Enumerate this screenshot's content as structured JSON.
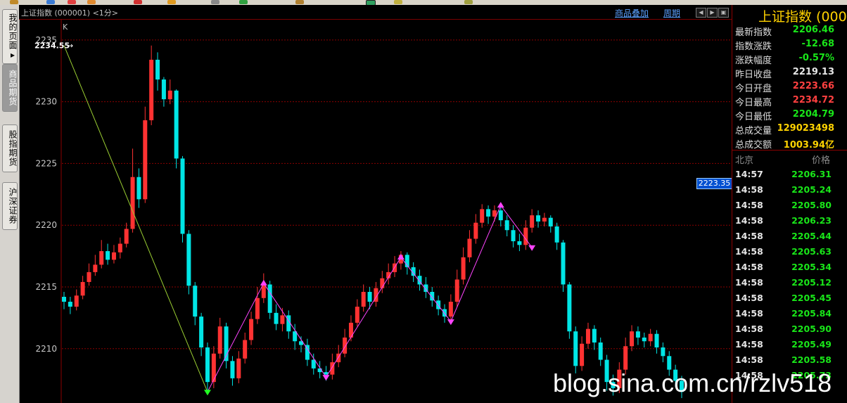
{
  "window": {
    "title": "上证指数 (000001) <1分>",
    "overlay_link": "商品叠加",
    "period_link": "周期"
  },
  "sidebar": {
    "tabs": [
      {
        "label": "我的页面▸",
        "active": false
      },
      {
        "label": "商品期货",
        "active": true
      },
      {
        "label": "股指期货",
        "active": false
      },
      {
        "label": "沪深证券",
        "active": false
      }
    ]
  },
  "chart_data": {
    "type": "candlestick",
    "chart_label": "K",
    "y_ticks": [
      "2235",
      "2230",
      "2225",
      "2220",
      "2215",
      "2210"
    ],
    "ylim": [
      2205.6,
      2236.7
    ],
    "grid": true,
    "peak_label": "2234.55",
    "price_tag": "2223.35",
    "colors": {
      "up": "#ff3232",
      "down": "#00e5e5",
      "wave_main": "#9acd32",
      "wave": "#ff44ff"
    },
    "wave_points": [
      {
        "i": 0,
        "v": 2234.55
      },
      {
        "i": 23,
        "v": 2206.5
      },
      {
        "i": 32,
        "v": 2215.3
      },
      {
        "i": 42,
        "v": 2207.7
      },
      {
        "i": 54,
        "v": 2217.4
      },
      {
        "i": 62,
        "v": 2212.2
      },
      {
        "i": 70,
        "v": 2221.6
      },
      {
        "i": 75,
        "v": 2218.2
      }
    ],
    "bars": [
      {
        "o": 2214.2,
        "c": 2213.8,
        "h": 2214.6,
        "l": 2213.2
      },
      {
        "o": 2213.8,
        "c": 2213.4,
        "h": 2214.2,
        "l": 2212.8
      },
      {
        "o": 2213.4,
        "c": 2214.3,
        "h": 2214.8,
        "l": 2213.1
      },
      {
        "o": 2214.3,
        "c": 2215.4,
        "h": 2215.9,
        "l": 2214.0
      },
      {
        "o": 2215.4,
        "c": 2216.2,
        "h": 2216.9,
        "l": 2215.1
      },
      {
        "o": 2216.2,
        "c": 2216.8,
        "h": 2217.6,
        "l": 2215.9
      },
      {
        "o": 2216.8,
        "c": 2217.9,
        "h": 2218.8,
        "l": 2216.5
      },
      {
        "o": 2217.9,
        "c": 2217.2,
        "h": 2218.5,
        "l": 2216.8
      },
      {
        "o": 2217.2,
        "c": 2217.8,
        "h": 2218.4,
        "l": 2216.9
      },
      {
        "o": 2217.8,
        "c": 2218.5,
        "h": 2219.0,
        "l": 2217.3
      },
      {
        "o": 2218.5,
        "c": 2219.7,
        "h": 2220.2,
        "l": 2218.2
      },
      {
        "o": 2219.7,
        "c": 2223.9,
        "h": 2226.2,
        "l": 2219.4
      },
      {
        "o": 2223.9,
        "c": 2222.1,
        "h": 2224.6,
        "l": 2221.4
      },
      {
        "o": 2222.1,
        "c": 2228.5,
        "h": 2229.6,
        "l": 2221.8
      },
      {
        "o": 2228.5,
        "c": 2233.4,
        "h": 2234.55,
        "l": 2228.1
      },
      {
        "o": 2233.4,
        "c": 2231.8,
        "h": 2234.0,
        "l": 2230.9
      },
      {
        "o": 2231.8,
        "c": 2230.2,
        "h": 2232.0,
        "l": 2229.6
      },
      {
        "o": 2230.2,
        "c": 2230.9,
        "h": 2231.8,
        "l": 2229.8
      },
      {
        "o": 2230.9,
        "c": 2225.4,
        "h": 2231.0,
        "l": 2224.6
      },
      {
        "o": 2225.4,
        "c": 2219.3,
        "h": 2225.6,
        "l": 2218.6
      },
      {
        "o": 2219.3,
        "c": 2215.1,
        "h": 2219.6,
        "l": 2214.4
      },
      {
        "o": 2215.1,
        "c": 2212.6,
        "h": 2215.4,
        "l": 2211.9
      },
      {
        "o": 2212.6,
        "c": 2210.1,
        "h": 2212.9,
        "l": 2209.4
      },
      {
        "o": 2210.1,
        "c": 2207.3,
        "h": 2210.5,
        "l": 2206.5
      },
      {
        "o": 2207.3,
        "c": 2209.6,
        "h": 2210.2,
        "l": 2206.8
      },
      {
        "o": 2209.6,
        "c": 2211.8,
        "h": 2212.5,
        "l": 2209.2
      },
      {
        "o": 2211.8,
        "c": 2209.0,
        "h": 2212.1,
        "l": 2208.4
      },
      {
        "o": 2209.0,
        "c": 2207.6,
        "h": 2209.4,
        "l": 2207.0
      },
      {
        "o": 2207.6,
        "c": 2209.2,
        "h": 2209.8,
        "l": 2207.2
      },
      {
        "o": 2209.2,
        "c": 2210.7,
        "h": 2211.3,
        "l": 2208.8
      },
      {
        "o": 2210.7,
        "c": 2212.4,
        "h": 2213.0,
        "l": 2210.3
      },
      {
        "o": 2212.4,
        "c": 2214.1,
        "h": 2215.0,
        "l": 2212.0
      },
      {
        "o": 2214.1,
        "c": 2215.2,
        "h": 2216.1,
        "l": 2213.7
      },
      {
        "o": 2215.2,
        "c": 2212.9,
        "h": 2215.5,
        "l": 2212.4
      },
      {
        "o": 2212.9,
        "c": 2212.0,
        "h": 2213.6,
        "l": 2211.5
      },
      {
        "o": 2212.0,
        "c": 2212.7,
        "h": 2213.3,
        "l": 2211.4
      },
      {
        "o": 2212.7,
        "c": 2211.4,
        "h": 2213.1,
        "l": 2210.8
      },
      {
        "o": 2211.4,
        "c": 2210.6,
        "h": 2212.0,
        "l": 2209.9
      },
      {
        "o": 2210.6,
        "c": 2210.3,
        "h": 2211.0,
        "l": 2209.7
      },
      {
        "o": 2210.3,
        "c": 2209.1,
        "h": 2210.8,
        "l": 2208.6
      },
      {
        "o": 2209.1,
        "c": 2208.4,
        "h": 2209.6,
        "l": 2207.9
      },
      {
        "o": 2208.4,
        "c": 2208.1,
        "h": 2209.0,
        "l": 2207.6
      },
      {
        "o": 2208.1,
        "c": 2207.9,
        "h": 2208.6,
        "l": 2207.4
      },
      {
        "o": 2207.9,
        "c": 2208.9,
        "h": 2209.6,
        "l": 2207.5
      },
      {
        "o": 2208.9,
        "c": 2209.6,
        "h": 2210.3,
        "l": 2208.5
      },
      {
        "o": 2209.6,
        "c": 2210.9,
        "h": 2211.6,
        "l": 2209.3
      },
      {
        "o": 2210.9,
        "c": 2212.1,
        "h": 2212.7,
        "l": 2210.6
      },
      {
        "o": 2212.1,
        "c": 2213.4,
        "h": 2214.0,
        "l": 2211.8
      },
      {
        "o": 2213.4,
        "c": 2214.6,
        "h": 2215.2,
        "l": 2213.0
      },
      {
        "o": 2214.6,
        "c": 2213.8,
        "h": 2215.0,
        "l": 2213.2
      },
      {
        "o": 2213.8,
        "c": 2214.9,
        "h": 2215.4,
        "l": 2213.4
      },
      {
        "o": 2214.9,
        "c": 2215.7,
        "h": 2216.3,
        "l": 2214.5
      },
      {
        "o": 2215.7,
        "c": 2216.2,
        "h": 2216.9,
        "l": 2215.2
      },
      {
        "o": 2216.2,
        "c": 2216.9,
        "h": 2217.5,
        "l": 2215.8
      },
      {
        "o": 2216.9,
        "c": 2217.6,
        "h": 2217.9,
        "l": 2216.4
      },
      {
        "o": 2217.6,
        "c": 2216.6,
        "h": 2217.8,
        "l": 2216.0
      },
      {
        "o": 2216.6,
        "c": 2215.9,
        "h": 2217.0,
        "l": 2215.4
      },
      {
        "o": 2215.9,
        "c": 2215.2,
        "h": 2216.4,
        "l": 2214.7
      },
      {
        "o": 2215.2,
        "c": 2214.6,
        "h": 2215.8,
        "l": 2214.1
      },
      {
        "o": 2214.6,
        "c": 2213.9,
        "h": 2215.0,
        "l": 2213.4
      },
      {
        "o": 2213.9,
        "c": 2213.2,
        "h": 2214.3,
        "l": 2212.7
      },
      {
        "o": 2213.2,
        "c": 2212.6,
        "h": 2213.6,
        "l": 2212.1
      },
      {
        "o": 2212.6,
        "c": 2213.8,
        "h": 2214.4,
        "l": 2212.2
      },
      {
        "o": 2213.8,
        "c": 2215.6,
        "h": 2216.4,
        "l": 2213.4
      },
      {
        "o": 2215.6,
        "c": 2217.4,
        "h": 2218.2,
        "l": 2215.2
      },
      {
        "o": 2217.4,
        "c": 2218.9,
        "h": 2219.6,
        "l": 2217.0
      },
      {
        "o": 2218.9,
        "c": 2220.2,
        "h": 2220.9,
        "l": 2218.5
      },
      {
        "o": 2220.2,
        "c": 2221.3,
        "h": 2221.7,
        "l": 2219.8
      },
      {
        "o": 2221.3,
        "c": 2220.7,
        "h": 2221.6,
        "l": 2220.1
      },
      {
        "o": 2220.7,
        "c": 2221.2,
        "h": 2221.6,
        "l": 2220.3
      },
      {
        "o": 2221.2,
        "c": 2220.4,
        "h": 2221.6,
        "l": 2219.9
      },
      {
        "o": 2220.4,
        "c": 2219.6,
        "h": 2220.8,
        "l": 2219.1
      },
      {
        "o": 2219.6,
        "c": 2218.7,
        "h": 2220.0,
        "l": 2218.2
      },
      {
        "o": 2218.7,
        "c": 2218.4,
        "h": 2219.3,
        "l": 2217.9
      },
      {
        "o": 2218.4,
        "c": 2219.8,
        "h": 2220.4,
        "l": 2218.0
      },
      {
        "o": 2219.8,
        "c": 2220.8,
        "h": 2221.3,
        "l": 2219.4
      },
      {
        "o": 2220.8,
        "c": 2220.3,
        "h": 2221.2,
        "l": 2219.8
      },
      {
        "o": 2220.3,
        "c": 2220.6,
        "h": 2221.0,
        "l": 2219.9
      },
      {
        "o": 2220.6,
        "c": 2219.9,
        "h": 2220.8,
        "l": 2219.4
      },
      {
        "o": 2219.9,
        "c": 2218.6,
        "h": 2220.2,
        "l": 2218.0
      },
      {
        "o": 2218.6,
        "c": 2215.2,
        "h": 2218.8,
        "l": 2214.6
      },
      {
        "o": 2215.2,
        "c": 2211.4,
        "h": 2215.4,
        "l": 2210.8
      },
      {
        "o": 2211.4,
        "c": 2208.6,
        "h": 2211.8,
        "l": 2208.0
      },
      {
        "o": 2208.6,
        "c": 2210.4,
        "h": 2211.0,
        "l": 2208.2
      },
      {
        "o": 2210.4,
        "c": 2211.6,
        "h": 2212.1,
        "l": 2210.0
      },
      {
        "o": 2211.6,
        "c": 2210.5,
        "h": 2211.9,
        "l": 2209.9
      },
      {
        "o": 2210.5,
        "c": 2209.1,
        "h": 2210.9,
        "l": 2208.6
      },
      {
        "o": 2209.1,
        "c": 2207.3,
        "h": 2209.5,
        "l": 2206.6
      },
      {
        "o": 2207.3,
        "c": 2206.8,
        "h": 2207.9,
        "l": 2206.2
      },
      {
        "o": 2206.8,
        "c": 2208.3,
        "h": 2208.9,
        "l": 2206.4
      },
      {
        "o": 2208.3,
        "c": 2210.2,
        "h": 2210.9,
        "l": 2207.9
      },
      {
        "o": 2210.2,
        "c": 2211.4,
        "h": 2211.9,
        "l": 2209.8
      },
      {
        "o": 2211.4,
        "c": 2210.9,
        "h": 2211.8,
        "l": 2210.3
      },
      {
        "o": 2210.9,
        "c": 2210.6,
        "h": 2211.3,
        "l": 2210.1
      },
      {
        "o": 2210.6,
        "c": 2211.2,
        "h": 2211.6,
        "l": 2210.2
      },
      {
        "o": 2211.2,
        "c": 2210.1,
        "h": 2211.5,
        "l": 2209.6
      },
      {
        "o": 2210.1,
        "c": 2209.4,
        "h": 2210.5,
        "l": 2208.9
      },
      {
        "o": 2209.4,
        "c": 2208.3,
        "h": 2209.8,
        "l": 2207.8
      },
      {
        "o": 2208.3,
        "c": 2207.4,
        "h": 2208.7,
        "l": 2206.9
      },
      {
        "o": 2207.4,
        "c": 2206.5,
        "h": 2207.8,
        "l": 2206.0
      }
    ]
  },
  "quote": {
    "title": "上证指数 (0000",
    "rows": [
      {
        "label": "最新指数",
        "value": "2206.46",
        "color": "#19e619"
      },
      {
        "label": "指数涨跌",
        "value": "-12.68",
        "color": "#19e619"
      },
      {
        "label": "涨跌幅度",
        "value": "-0.57%",
        "color": "#19e619"
      },
      {
        "label": "昨日收盘",
        "value": "2219.13",
        "color": "#e6e6e6"
      },
      {
        "label": "今日开盘",
        "value": "2223.66",
        "color": "#ff4040"
      },
      {
        "label": "今日最高",
        "value": "2234.72",
        "color": "#ff4040"
      },
      {
        "label": "今日最低",
        "value": "2204.79",
        "color": "#19e619"
      },
      {
        "label": "总成交量",
        "value": "129023498",
        "color": "#ffd200"
      },
      {
        "label": "总成交额",
        "value": "1003.94亿",
        "color": "#ffd200"
      }
    ]
  },
  "ticks": {
    "header_left": "北京",
    "header_right": "价格",
    "rows": [
      {
        "time": "14:57",
        "price": "2206.31"
      },
      {
        "time": "14:58",
        "price": "2205.24"
      },
      {
        "time": "14:58",
        "price": "2205.80"
      },
      {
        "time": "14:58",
        "price": "2206.23"
      },
      {
        "time": "14:58",
        "price": "2205.44"
      },
      {
        "time": "14:58",
        "price": "2205.63"
      },
      {
        "time": "14:58",
        "price": "2205.34"
      },
      {
        "time": "14:58",
        "price": "2205.12"
      },
      {
        "time": "14:58",
        "price": "2205.45"
      },
      {
        "time": "14:58",
        "price": "2205.84"
      },
      {
        "time": "14:58",
        "price": "2205.90"
      },
      {
        "time": "14:58",
        "price": "2205.49"
      },
      {
        "time": "14:58",
        "price": "2205.58"
      },
      {
        "time": "14:58",
        "price": "2205.73"
      }
    ]
  },
  "watermark": "blog.sina.com.cn/rzlv518"
}
